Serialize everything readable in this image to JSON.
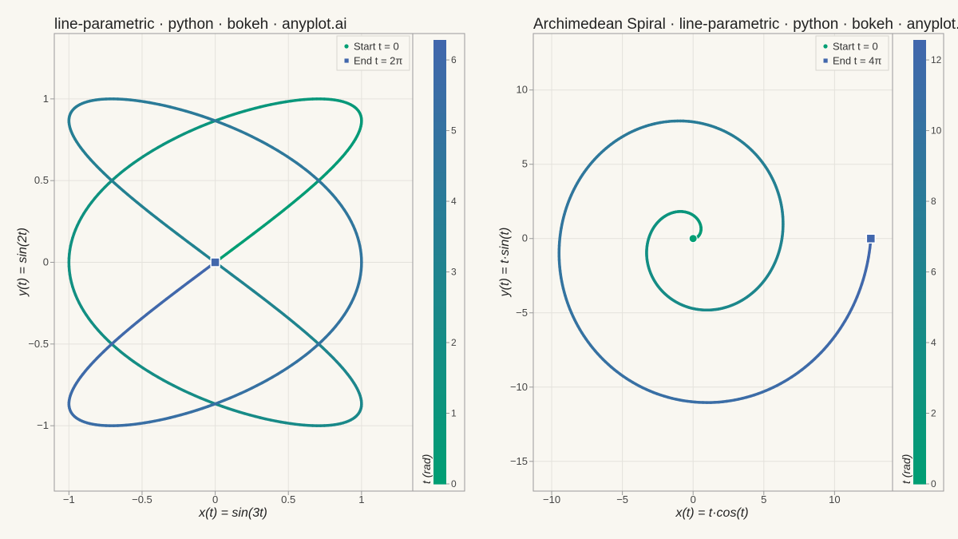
{
  "colors": {
    "background": "#f9f7f1",
    "start": "#009e73",
    "end": "#4267ac",
    "grid": "#e4e2dc",
    "axis": "#9a9a9a",
    "text": "#444444",
    "title": "#222222"
  },
  "chart_data": [
    {
      "type": "line",
      "title": "line-parametric · python · bokeh · anyplot.ai",
      "xlabel": "x(t) = sin(3t)",
      "ylabel": "y(t) = sin(2t)",
      "curve": "lissajous",
      "parametric": {
        "x": "sin(3t)",
        "y": "sin(2t)",
        "t_start": 0,
        "t_end": 6.283185
      },
      "xlim": [
        -1.1,
        1.35
      ],
      "ylim": [
        -1.4,
        1.4
      ],
      "x_ticks": [
        -1,
        -0.5,
        0,
        0.5,
        1
      ],
      "x_tick_labels": [
        "−1",
        "−0.5",
        "0",
        "0.5",
        "1"
      ],
      "y_ticks": [
        1,
        0.5,
        0,
        -0.5,
        -1
      ],
      "y_tick_labels": [
        "1",
        "0.5",
        "0",
        "−0.5",
        "−1"
      ],
      "legend": {
        "position": "top-right",
        "items": [
          {
            "label": "Start  t = 0",
            "marker": "circle",
            "color": "#009e73"
          },
          {
            "label": "End  t = 2π",
            "marker": "square",
            "color": "#4267ac"
          }
        ]
      },
      "start_point": {
        "x": 0,
        "y": 0
      },
      "end_point": {
        "x": 0,
        "y": 0
      },
      "colorbar": {
        "label": "t (rad)",
        "low": 0,
        "high": 6.283185,
        "ticks": [
          0,
          1,
          2,
          3,
          4,
          5,
          6
        ],
        "tick_labels": [
          "0",
          "1",
          "2",
          "3",
          "4",
          "5",
          "6"
        ]
      },
      "grid": true
    },
    {
      "type": "line",
      "title": "Archimedean Spiral · line-parametric · python · bokeh · anyplot.ai",
      "xlabel": "x(t) = t·cos(t)",
      "ylabel": "y(t) = t·sin(t)",
      "curve": "spiral",
      "parametric": {
        "x": "t·cos(t)",
        "y": "t·sin(t)",
        "t_start": 0,
        "t_end": 12.566371
      },
      "xlim": [
        -11.3,
        14.1
      ],
      "ylim": [
        -17,
        13.8
      ],
      "x_ticks": [
        -10,
        -5,
        0,
        5,
        10
      ],
      "x_tick_labels": [
        "−10",
        "−5",
        "0",
        "5",
        "10"
      ],
      "y_ticks": [
        10,
        5,
        0,
        -5,
        -10,
        -15
      ],
      "y_tick_labels": [
        "10",
        "5",
        "0",
        "−5",
        "−10",
        "−15"
      ],
      "legend": {
        "position": "top-right",
        "items": [
          {
            "label": "Start  t = 0",
            "marker": "circle",
            "color": "#009e73"
          },
          {
            "label": "End  t = 4π",
            "marker": "square",
            "color": "#4267ac"
          }
        ]
      },
      "start_point": {
        "x": 0,
        "y": 0
      },
      "end_point": {
        "x": 12.566,
        "y": 0
      },
      "colorbar": {
        "label": "t (rad)",
        "low": 0,
        "high": 12.566371,
        "ticks": [
          0,
          2,
          4,
          6,
          8,
          10,
          12
        ],
        "tick_labels": [
          "0",
          "2",
          "4",
          "6",
          "8",
          "10",
          "12"
        ]
      },
      "grid": true
    }
  ]
}
